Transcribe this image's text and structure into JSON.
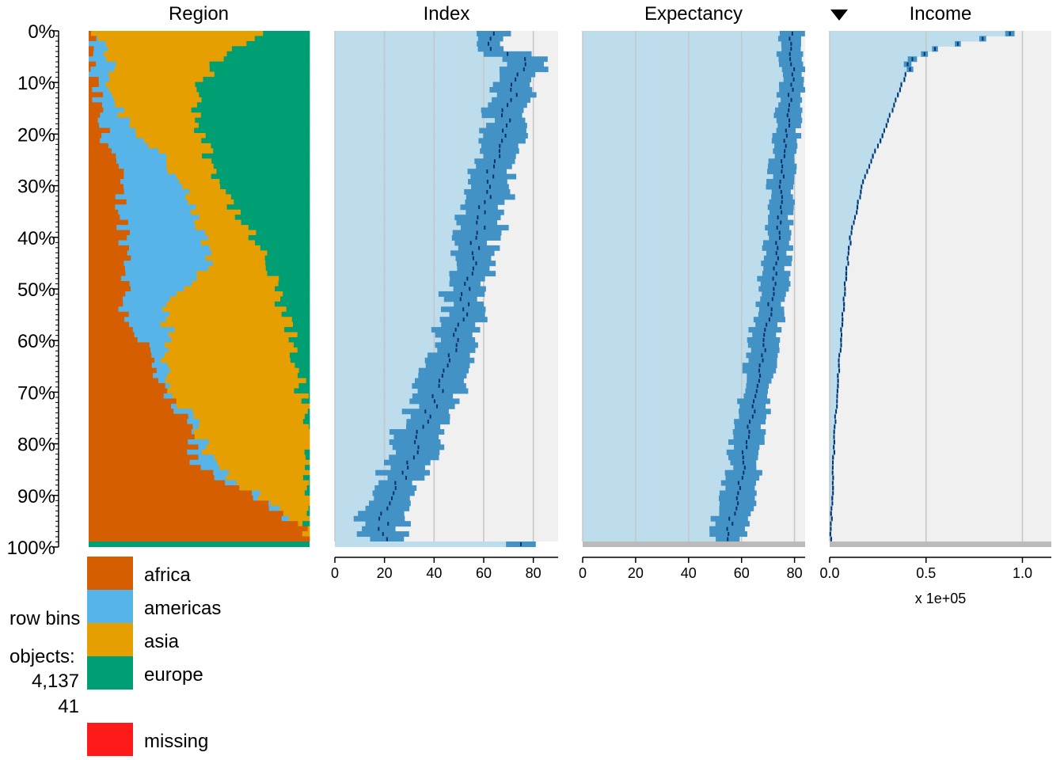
{
  "chart_data": {
    "type": "tableplot",
    "sort_column": "Income",
    "sort_indicator": "descending-arrow",
    "y_axis": {
      "tick_labels": [
        "0%",
        "10%",
        "20%",
        "30%",
        "40%",
        "50%",
        "60%",
        "70%",
        "80%",
        "90%",
        "100%"
      ]
    },
    "side_text": {
      "row_bins_label": "row bins",
      "objects_label": "objects:",
      "objects_value": "4,137",
      "per_bin_value": "41"
    },
    "columns": [
      {
        "name": "Region",
        "kind": "categorical",
        "categories": [
          "africa",
          "americas",
          "asia",
          "europe"
        ],
        "missing_label": "missing",
        "colors": {
          "africa": "#D55E00",
          "americas": "#56B4E9",
          "asia": "#E69F00",
          "europe": "#009E73",
          "missing": "#FF1A1A"
        },
        "composition_profile": [
          {
            "pct": 0,
            "africa": 0.0,
            "americas": 0.0,
            "asia": 0.8,
            "europe": 1.0
          },
          {
            "pct": 5,
            "africa": 0.0,
            "americas": 0.1,
            "asia": 0.6,
            "europe": 1.0
          },
          {
            "pct": 12,
            "africa": 0.03,
            "americas": 0.1,
            "asia": 0.48,
            "europe": 1.0
          },
          {
            "pct": 18,
            "africa": 0.05,
            "americas": 0.18,
            "asia": 0.5,
            "europe": 1.0
          },
          {
            "pct": 25,
            "africa": 0.12,
            "americas": 0.35,
            "asia": 0.55,
            "europe": 1.0
          },
          {
            "pct": 35,
            "africa": 0.15,
            "americas": 0.46,
            "asia": 0.66,
            "europe": 1.0
          },
          {
            "pct": 45,
            "africa": 0.18,
            "americas": 0.56,
            "asia": 0.8,
            "europe": 1.0
          },
          {
            "pct": 55,
            "africa": 0.16,
            "americas": 0.35,
            "asia": 0.88,
            "europe": 1.0
          },
          {
            "pct": 62,
            "africa": 0.26,
            "americas": 0.36,
            "asia": 0.93,
            "europe": 1.0
          },
          {
            "pct": 70,
            "africa": 0.32,
            "americas": 0.36,
            "asia": 0.96,
            "europe": 1.0
          },
          {
            "pct": 78,
            "africa": 0.46,
            "americas": 0.5,
            "asia": 0.99,
            "europe": 1.0
          },
          {
            "pct": 85,
            "africa": 0.47,
            "americas": 0.56,
            "asia": 1.0,
            "europe": 1.0
          },
          {
            "pct": 92,
            "africa": 0.8,
            "americas": 0.8,
            "asia": 1.0,
            "europe": 1.0
          },
          {
            "pct": 99,
            "africa": 1.0,
            "americas": 1.0,
            "asia": 1.0,
            "europe": 1.0
          }
        ],
        "missing_bin_category": "europe"
      },
      {
        "name": "Index",
        "kind": "numeric",
        "tick_labels": [
          "0",
          "20",
          "40",
          "60",
          "80"
        ],
        "tick_values": [
          0,
          20,
          40,
          60,
          80
        ],
        "xlim": [
          0,
          90
        ],
        "profile": [
          {
            "pct": 0,
            "mean": 62
          },
          {
            "pct": 4,
            "mean": 62
          },
          {
            "pct": 5,
            "mean": 77
          },
          {
            "pct": 15,
            "mean": 70
          },
          {
            "pct": 25,
            "mean": 64
          },
          {
            "pct": 35,
            "mean": 60
          },
          {
            "pct": 45,
            "mean": 55
          },
          {
            "pct": 55,
            "mean": 52
          },
          {
            "pct": 65,
            "mean": 47
          },
          {
            "pct": 75,
            "mean": 38
          },
          {
            "pct": 85,
            "mean": 30
          },
          {
            "pct": 95,
            "mean": 20
          },
          {
            "pct": 100,
            "mean": 19
          }
        ],
        "missing_bin_mean": 75
      },
      {
        "name": "Expectancy",
        "kind": "numeric",
        "tick_labels": [
          "0",
          "20",
          "40",
          "60",
          "80"
        ],
        "tick_values": [
          0,
          20,
          40,
          60,
          80
        ],
        "xlim": [
          0,
          84
        ],
        "profile": [
          {
            "pct": 0,
            "mean": 79
          },
          {
            "pct": 10,
            "mean": 79
          },
          {
            "pct": 20,
            "mean": 77
          },
          {
            "pct": 30,
            "mean": 75
          },
          {
            "pct": 40,
            "mean": 74
          },
          {
            "pct": 50,
            "mean": 72
          },
          {
            "pct": 60,
            "mean": 69
          },
          {
            "pct": 70,
            "mean": 66
          },
          {
            "pct": 80,
            "mean": 62
          },
          {
            "pct": 90,
            "mean": 59
          },
          {
            "pct": 100,
            "mean": 54
          }
        ],
        "missing_bin_mean": null
      },
      {
        "name": "Income",
        "kind": "numeric",
        "tick_labels": [
          "0.0",
          "0.5",
          "1.0"
        ],
        "tick_values": [
          0,
          0.5,
          1.0
        ],
        "unit_label": "x 1e+05",
        "xlim": [
          0,
          1.15
        ],
        "profile": [
          {
            "pct": 0,
            "mean": 1.05
          },
          {
            "pct": 1,
            "mean": 0.86
          },
          {
            "pct": 2,
            "mean": 0.73
          },
          {
            "pct": 3,
            "mean": 0.6
          },
          {
            "pct": 4,
            "mean": 0.53
          },
          {
            "pct": 5,
            "mean": 0.45
          },
          {
            "pct": 7,
            "mean": 0.41
          },
          {
            "pct": 10,
            "mean": 0.38
          },
          {
            "pct": 15,
            "mean": 0.33
          },
          {
            "pct": 20,
            "mean": 0.28
          },
          {
            "pct": 25,
            "mean": 0.22
          },
          {
            "pct": 30,
            "mean": 0.17
          },
          {
            "pct": 40,
            "mean": 0.11
          },
          {
            "pct": 50,
            "mean": 0.08
          },
          {
            "pct": 60,
            "mean": 0.06
          },
          {
            "pct": 70,
            "mean": 0.04
          },
          {
            "pct": 80,
            "mean": 0.025
          },
          {
            "pct": 90,
            "mean": 0.015
          },
          {
            "pct": 100,
            "mean": 0.005
          }
        ],
        "missing_bin_mean": null
      }
    ],
    "colors": {
      "bar": "#4292C6",
      "light": "#BDDCEC",
      "panel_bg": "#F0F0F0",
      "mean_tick": "#08306B",
      "grid": "#C6C6C6",
      "na_gray": "#BBBBBB"
    }
  }
}
